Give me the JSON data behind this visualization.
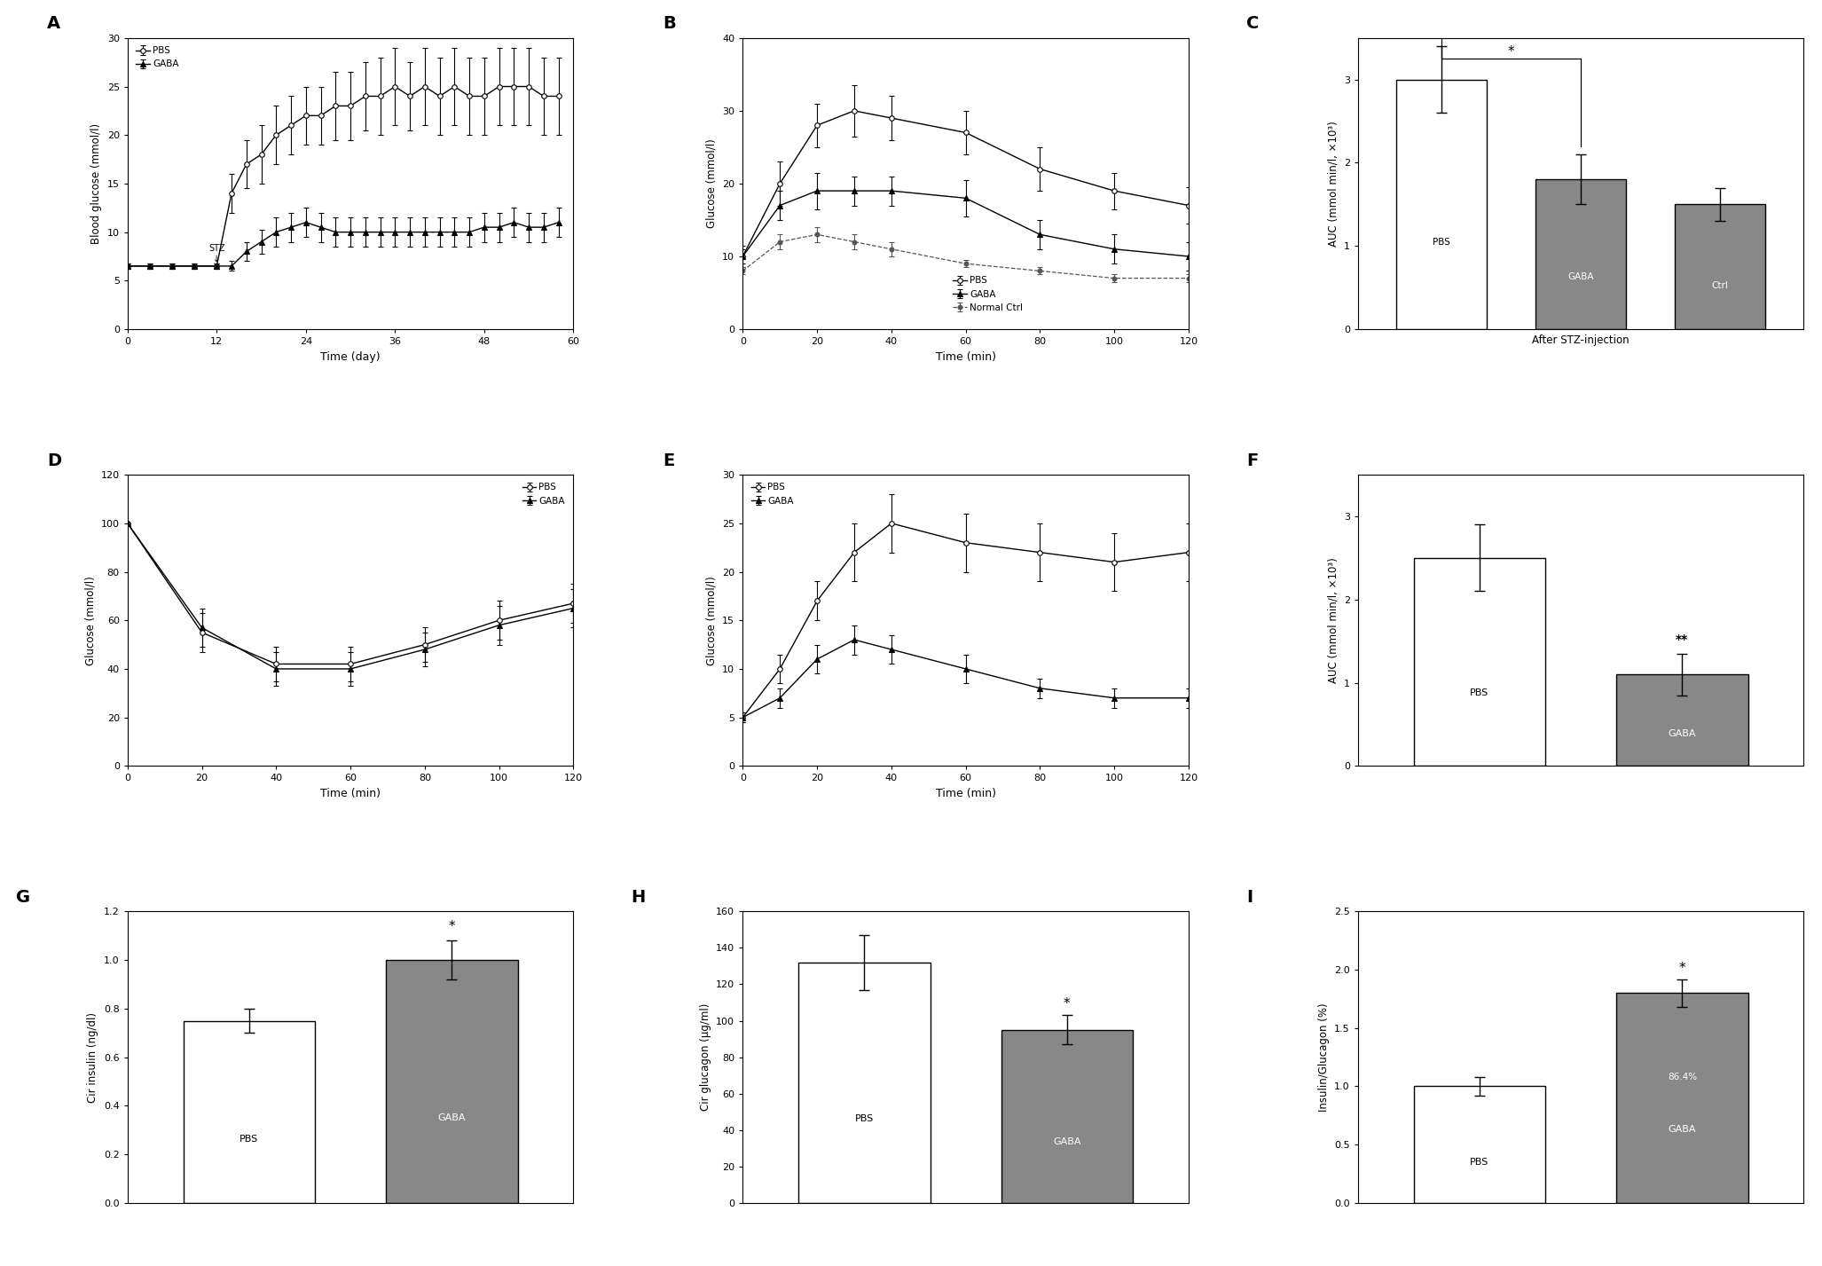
{
  "panel_A": {
    "label": "A",
    "PBS_x": [
      0,
      3,
      6,
      9,
      12,
      14,
      16,
      18,
      20,
      22,
      24,
      26,
      28,
      30,
      32,
      34,
      36,
      38,
      40,
      42,
      44,
      46,
      48,
      50,
      52,
      54,
      56,
      58
    ],
    "PBS_y": [
      6.5,
      6.5,
      6.5,
      6.5,
      6.5,
      14,
      17,
      18,
      20,
      21,
      22,
      22,
      23,
      23,
      24,
      24,
      25,
      24,
      25,
      24,
      25,
      24,
      24,
      25,
      25,
      25,
      24,
      24
    ],
    "PBS_yerr": [
      0.3,
      0.3,
      0.3,
      0.3,
      0.3,
      2,
      2.5,
      3,
      3,
      3,
      3,
      3,
      3.5,
      3.5,
      3.5,
      4,
      4,
      3.5,
      4,
      4,
      4,
      4,
      4,
      4,
      4,
      4,
      4,
      4
    ],
    "GABA_x": [
      0,
      3,
      6,
      9,
      12,
      14,
      16,
      18,
      20,
      22,
      24,
      26,
      28,
      30,
      32,
      34,
      36,
      38,
      40,
      42,
      44,
      46,
      48,
      50,
      52,
      54,
      56,
      58
    ],
    "GABA_y": [
      6.5,
      6.5,
      6.5,
      6.5,
      6.5,
      6.5,
      8,
      9,
      10,
      10.5,
      11,
      10.5,
      10,
      10,
      10,
      10,
      10,
      10,
      10,
      10,
      10,
      10,
      10.5,
      10.5,
      11,
      10.5,
      10.5,
      11
    ],
    "GABA_yerr": [
      0.3,
      0.3,
      0.3,
      0.3,
      0.3,
      0.5,
      1,
      1.2,
      1.5,
      1.5,
      1.5,
      1.5,
      1.5,
      1.5,
      1.5,
      1.5,
      1.5,
      1.5,
      1.5,
      1.5,
      1.5,
      1.5,
      1.5,
      1.5,
      1.5,
      1.5,
      1.5,
      1.5
    ],
    "xlabel": "Time (day)",
    "ylabel": "Blood glucose (mmol/l)",
    "ylim": [
      0,
      30
    ],
    "xlim": [
      0,
      60
    ],
    "yticks": [
      0,
      5,
      10,
      15,
      20,
      25,
      30
    ],
    "xticks": [
      0,
      12,
      24,
      36,
      48,
      60
    ]
  },
  "panel_B": {
    "label": "B",
    "PBS_x": [
      0,
      10,
      20,
      30,
      40,
      60,
      80,
      100,
      120
    ],
    "PBS_y": [
      10,
      20,
      28,
      30,
      29,
      27,
      22,
      19,
      17
    ],
    "PBS_yerr": [
      1.5,
      3,
      3,
      3.5,
      3,
      3,
      3,
      2.5,
      2.5
    ],
    "GABA_x": [
      0,
      10,
      20,
      30,
      40,
      60,
      80,
      100,
      120
    ],
    "GABA_y": [
      10,
      17,
      19,
      19,
      19,
      18,
      13,
      11,
      10
    ],
    "GABA_yerr": [
      1,
      2,
      2.5,
      2,
      2,
      2.5,
      2,
      2,
      2
    ],
    "Normal_x": [
      0,
      10,
      20,
      30,
      40,
      60,
      80,
      100,
      120
    ],
    "Normal_y": [
      8,
      12,
      13,
      12,
      11,
      9,
      8,
      7,
      7
    ],
    "Normal_yerr": [
      0.5,
      1,
      1,
      1,
      1,
      0.5,
      0.5,
      0.5,
      0.5
    ],
    "xlabel": "Time (min)",
    "ylabel": "Glucose (mmol/l)",
    "ylim": [
      0,
      40
    ],
    "xlim": [
      0,
      120
    ],
    "yticks": [
      0,
      10,
      20,
      30,
      40
    ],
    "xticks": [
      0,
      20,
      40,
      60,
      80,
      100,
      120
    ]
  },
  "panel_C": {
    "label": "C",
    "bars": [
      "PBS",
      "GABA",
      "Ctrl"
    ],
    "values": [
      3.0,
      1.8,
      1.5
    ],
    "errors": [
      0.4,
      0.3,
      0.2
    ],
    "colors": [
      "white",
      "#888888",
      "#888888"
    ],
    "bar_label_colors": [
      "black",
      "white",
      "white"
    ],
    "xlabel": "After STZ-injection",
    "ylabel": "AUC (mmol min/l, ×10³)",
    "ylim": [
      0,
      3.5
    ],
    "yticks": [
      0,
      1,
      2,
      3
    ]
  },
  "panel_D": {
    "label": "D",
    "PBS_x": [
      0,
      20,
      40,
      60,
      80,
      100,
      120
    ],
    "PBS_y": [
      100,
      55,
      42,
      42,
      50,
      60,
      67
    ],
    "PBS_yerr": [
      0,
      8,
      7,
      7,
      7,
      8,
      8
    ],
    "GABA_x": [
      0,
      20,
      40,
      60,
      80,
      100,
      120
    ],
    "GABA_y": [
      100,
      57,
      40,
      40,
      48,
      58,
      65
    ],
    "GABA_yerr": [
      0,
      8,
      7,
      7,
      7,
      8,
      8
    ],
    "xlabel": "Time (min)",
    "ylabel": "Glucose (mmol/l)",
    "ylim": [
      0,
      120
    ],
    "xlim": [
      0,
      120
    ],
    "yticks": [
      0,
      20,
      40,
      60,
      80,
      100,
      120
    ],
    "xticks": [
      0,
      20,
      40,
      60,
      80,
      100,
      120
    ]
  },
  "panel_E": {
    "label": "E",
    "PBS_x": [
      0,
      10,
      20,
      30,
      40,
      60,
      80,
      100,
      120
    ],
    "PBS_y": [
      5,
      10,
      17,
      22,
      25,
      23,
      22,
      21,
      22
    ],
    "PBS_yerr": [
      0.5,
      1.5,
      2,
      3,
      3,
      3,
      3,
      3,
      3
    ],
    "GABA_x": [
      0,
      10,
      20,
      30,
      40,
      60,
      80,
      100,
      120
    ],
    "GABA_y": [
      5,
      7,
      11,
      13,
      12,
      10,
      8,
      7,
      7
    ],
    "GABA_yerr": [
      0.5,
      1,
      1.5,
      1.5,
      1.5,
      1.5,
      1,
      1,
      1
    ],
    "xlabel": "Time (min)",
    "ylabel": "Glucose (mmol/l)",
    "ylim": [
      0,
      30
    ],
    "xlim": [
      0,
      120
    ],
    "yticks": [
      0,
      5,
      10,
      15,
      20,
      25,
      30
    ],
    "xticks": [
      0,
      20,
      40,
      60,
      80,
      100,
      120
    ]
  },
  "panel_F": {
    "label": "F",
    "bars": [
      "PBS",
      "GABA"
    ],
    "values": [
      2.5,
      1.1
    ],
    "errors": [
      0.4,
      0.25
    ],
    "colors": [
      "white",
      "#888888"
    ],
    "bar_label_colors": [
      "black",
      "white"
    ],
    "ylabel": "AUC (mmol min/l, ×10³)",
    "ylim": [
      0,
      3.5
    ],
    "yticks": [
      0,
      1,
      2,
      3
    ],
    "sig_annotation": "**"
  },
  "panel_G": {
    "label": "G",
    "bars": [
      "PBS",
      "GABA"
    ],
    "values": [
      0.75,
      1.0
    ],
    "errors": [
      0.05,
      0.08
    ],
    "colors": [
      "white",
      "#888888"
    ],
    "bar_label_colors": [
      "black",
      "white"
    ],
    "ylabel": "Cir insulin (ng/dl)",
    "ylim": [
      0,
      1.2
    ],
    "yticks": [
      0,
      0.2,
      0.4,
      0.6,
      0.8,
      1.0,
      1.2
    ],
    "sig_annotation": "*"
  },
  "panel_H": {
    "label": "H",
    "bars": [
      "PBS",
      "GABA"
    ],
    "values": [
      132,
      95
    ],
    "errors": [
      15,
      8
    ],
    "colors": [
      "white",
      "#888888"
    ],
    "bar_label_colors": [
      "black",
      "white"
    ],
    "ylabel": "Cir glucagon (μg/ml)",
    "ylim": [
      0,
      160
    ],
    "yticks": [
      0,
      20,
      40,
      60,
      80,
      100,
      120,
      140,
      160
    ],
    "sig_annotation": "*"
  },
  "panel_I": {
    "label": "I",
    "bars": [
      "PBS",
      "GABA"
    ],
    "values": [
      1.0,
      1.8
    ],
    "errors": [
      0.08,
      0.12
    ],
    "colors": [
      "white",
      "#888888"
    ],
    "bar_label_colors": [
      "black",
      "white"
    ],
    "ylabel": "Insulin/Glucagon (%)",
    "ylim": [
      0,
      2.5
    ],
    "yticks": [
      0,
      0.5,
      1.0,
      1.5,
      2.0,
      2.5
    ],
    "sig_annotation": "*",
    "gaba_label": "86.4%"
  }
}
